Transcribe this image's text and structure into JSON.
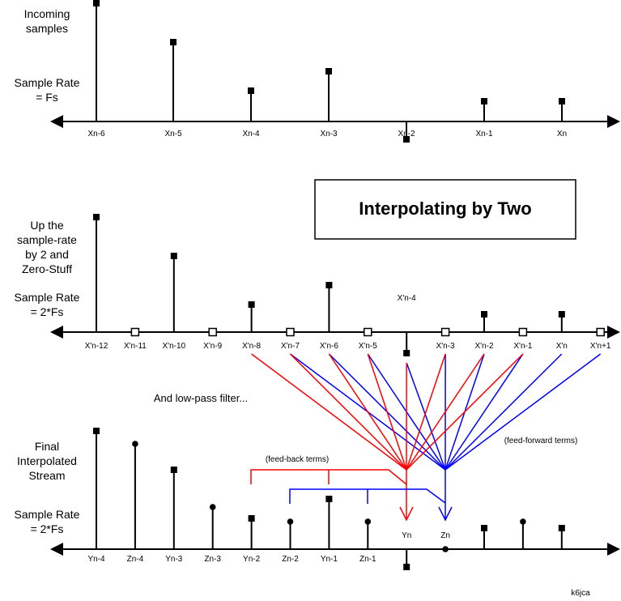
{
  "title": "Interpolating by Two",
  "section_top": {
    "caption": [
      "Incoming",
      "samples"
    ],
    "rate": [
      "Sample Rate",
      "= Fs"
    ],
    "labels": [
      "Xn-6",
      "Xn-5",
      "Xn-4",
      "Xn-3",
      "Xn-2",
      "Xn-1",
      "Xn"
    ]
  },
  "section_mid": {
    "caption": [
      "Up the",
      "sample-rate",
      "by 2 and",
      "Zero-Stuff"
    ],
    "rate": [
      "Sample Rate",
      "= 2*Fs"
    ],
    "labels": [
      "X'n-12",
      "X'n-11",
      "X'n-10",
      "X'n-9",
      "X'n-8",
      "X'n-7",
      "X'n-6",
      "X'n-5",
      "X'n-4",
      "X'n-3",
      "X'n-2",
      "X'n-1",
      "X'n",
      "X'n+1"
    ]
  },
  "filter_note": "And low-pass filter...",
  "section_bot": {
    "caption": [
      "Final",
      "Interpolated",
      "Stream"
    ],
    "rate": [
      "Sample Rate",
      "= 2*Fs"
    ],
    "labels": [
      "Yn-4",
      "Zn-4",
      "Yn-3",
      "Zn-3",
      "Yn-2",
      "Zn-2",
      "Yn-1",
      "Zn-1",
      "Yn",
      "Zn"
    ]
  },
  "feedback_label": "(feed-back terms)",
  "feedforward_label": "(feed-forward terms)",
  "credit": "k6jca",
  "colors": {
    "feedback": "#ff0000",
    "feedforward": "#0000ff"
  }
}
